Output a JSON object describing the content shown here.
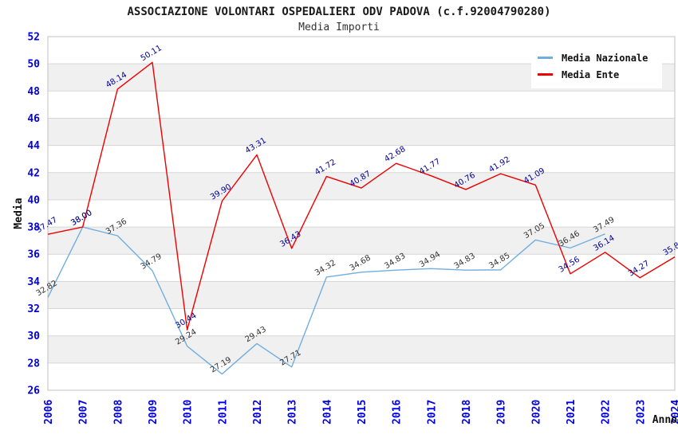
{
  "header": {
    "title": "ASSOCIAZIONE VOLONTARI OSPEDALIERI ODV PADOVA (c.f.92004790280)",
    "subtitle": "Media Importi"
  },
  "legend": [
    {
      "label": "Media Nazionale",
      "color": "#70AEE0"
    },
    {
      "label": "Media Ente",
      "color": "#EE0000"
    }
  ],
  "chart_data": {
    "type": "line",
    "title": "ASSOCIAZIONE VOLONTARI OSPEDALIERI ODV PADOVA (c.f.92004790280)",
    "subtitle": "Media Importi",
    "xlabel": "Anno",
    "ylabel": "Media",
    "x": [
      2006,
      2007,
      2008,
      2009,
      2010,
      2011,
      2012,
      2013,
      2014,
      2015,
      2016,
      2017,
      2018,
      2019,
      2020,
      2021,
      2022,
      2023,
      2024
    ],
    "series": [
      {
        "name": "Media Nazionale",
        "color": "#70AEE0",
        "label_color": "#333333",
        "values": [
          32.82,
          38.0,
          37.36,
          34.79,
          29.24,
          27.19,
          29.43,
          27.71,
          34.32,
          34.68,
          34.83,
          34.94,
          34.83,
          34.85,
          37.05,
          36.46,
          37.49,
          null,
          null
        ]
      },
      {
        "name": "Media Ente",
        "color": "#EE0000",
        "label_color": "#000099",
        "values": [
          37.47,
          38.0,
          48.14,
          50.11,
          30.44,
          39.9,
          43.31,
          36.43,
          41.72,
          40.87,
          42.68,
          41.77,
          40.76,
          41.92,
          41.09,
          34.56,
          36.14,
          34.27,
          35.8
        ]
      }
    ],
    "ylim": [
      26,
      52
    ],
    "ytick_step": 2,
    "grid": true,
    "legend_position": "top-right",
    "styles": {
      "tick_label_color": "#0000E0",
      "axis_title_color": "#111111",
      "band_color": "#F0F0F0",
      "grid_color": "#D6D6D6",
      "border_color": "#C0C0C0",
      "label_angle_deg": -31
    }
  }
}
